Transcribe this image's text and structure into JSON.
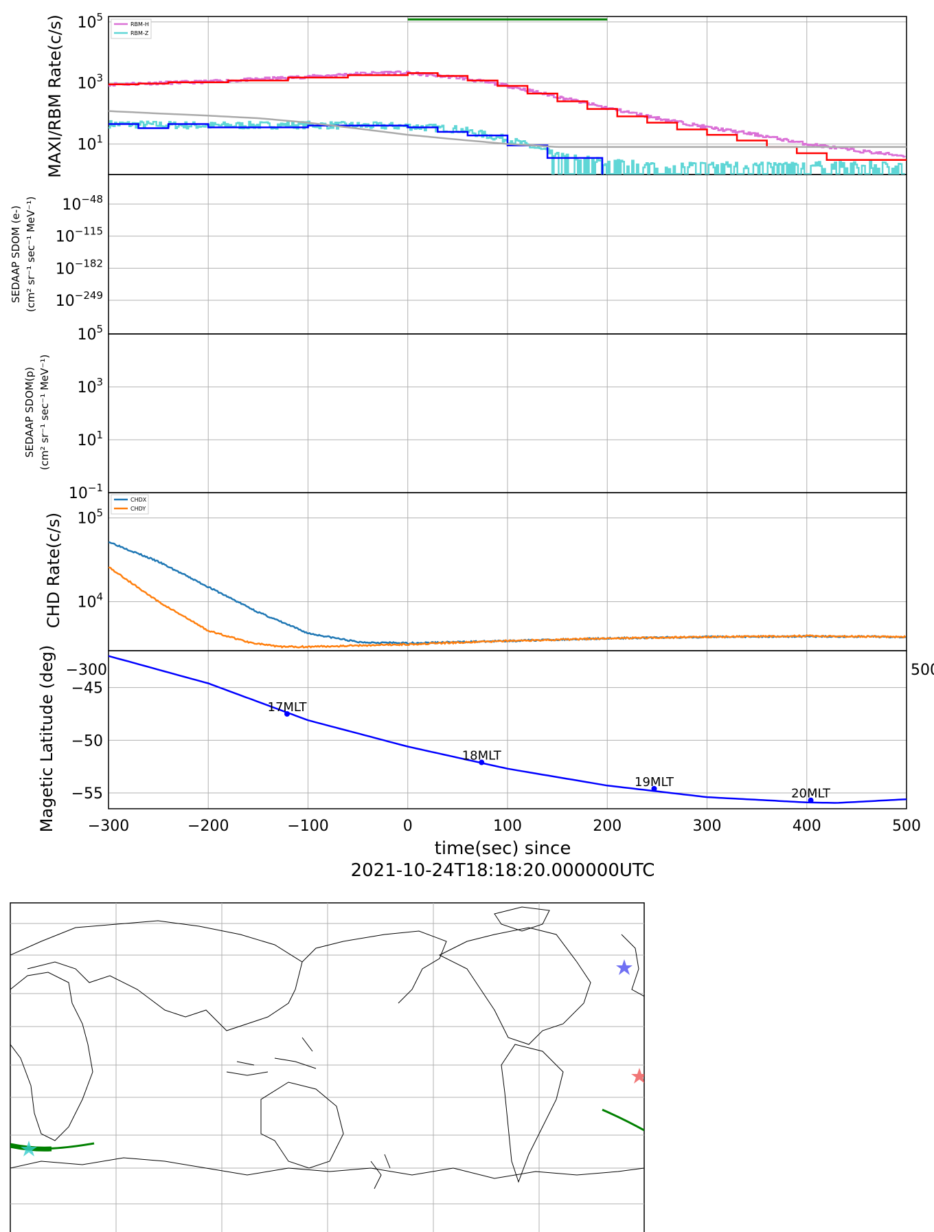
{
  "colors": {
    "grid": "#b0b0b0",
    "rbm_h": "#da70d6",
    "rbm_z": "#5fd6d6",
    "rbm_h_bin": "#ff0000",
    "rbm_z_bin": "#0000ff",
    "background_model": "#aaaaaa",
    "interval_bar": "#008000",
    "chdx": "#1f77b4",
    "chdy": "#ff7f0e",
    "maglat": "#0000ff",
    "track": "#008000",
    "star_blue": "#3333ee",
    "star_red": "#ee5555",
    "star_cyan": "#33cccc"
  },
  "chart_data": [
    {
      "type": "line",
      "panel": "rbm",
      "ylabel": "MAXI/RBM Rate(c/s)",
      "yscale": "log",
      "xlim": [
        -300,
        500
      ],
      "ylim": [
        1,
        150000
      ],
      "yticks": [
        {
          "value": 10,
          "label_base": "10",
          "label_exp": "1"
        },
        {
          "value": 1000,
          "label_base": "10",
          "label_exp": "3"
        },
        {
          "value": 100000,
          "label_base": "10",
          "label_exp": "5"
        }
      ],
      "legend": {
        "placement": "top-left",
        "entries": [
          "RBM-H",
          "RBM-Z"
        ]
      },
      "interval_bar": {
        "x": [
          0,
          200
        ],
        "y": 120000
      },
      "series": [
        {
          "name": "RBM-H",
          "x": [
            -300,
            -200,
            -100,
            -50,
            -20,
            0,
            50,
            100,
            150,
            200,
            250,
            300,
            350,
            400,
            450,
            500
          ],
          "y": [
            900,
            1100,
            1600,
            2000,
            2200,
            2100,
            1500,
            800,
            350,
            150,
            70,
            35,
            20,
            10,
            6,
            4
          ]
        },
        {
          "name": "RBM-Z",
          "x": [
            -300,
            -200,
            -100,
            0,
            50,
            100,
            130,
            150,
            200,
            250,
            300,
            400,
            500
          ],
          "y": [
            45,
            40,
            42,
            38,
            30,
            14,
            7,
            4,
            2.5,
            2,
            2,
            2,
            2
          ]
        },
        {
          "name": "RBM-H binned",
          "x": [
            -300,
            -270,
            -240,
            -180,
            -120,
            -60,
            0,
            30,
            60,
            90,
            120,
            150,
            180,
            210,
            240,
            270,
            300,
            330,
            360,
            390,
            420,
            500
          ],
          "y": [
            900,
            950,
            1050,
            1200,
            1500,
            1800,
            2100,
            1700,
            1200,
            800,
            450,
            250,
            140,
            80,
            50,
            30,
            20,
            13,
            8,
            5,
            3,
            3
          ]
        },
        {
          "name": "RBM-Z binned",
          "x": [
            -300,
            -270,
            -240,
            -200,
            -100,
            0,
            30,
            60,
            100,
            140,
            195
          ],
          "y": [
            45,
            33,
            45,
            35,
            40,
            35,
            25,
            19,
            9,
            3.5,
            1
          ]
        },
        {
          "name": "background",
          "x": [
            -300,
            -250,
            -200,
            -150,
            -100,
            -50,
            0,
            50,
            100,
            150,
            200,
            300,
            400,
            500
          ],
          "y": [
            120,
            100,
            85,
            70,
            50,
            32,
            20,
            14,
            10,
            8,
            8,
            8,
            8,
            8
          ]
        }
      ]
    },
    {
      "type": "line",
      "panel": "sdom_e",
      "ylabel_line1": "SEDAAP SDOM (e-)",
      "ylabel_line2": "(cm² sr⁻¹ sec⁻¹ MeV⁻¹)",
      "yticks": [
        {
          "value": -48,
          "label_base": "10",
          "label_exp": "−48"
        },
        {
          "value": -115,
          "label_base": "10",
          "label_exp": "−115"
        },
        {
          "value": -182,
          "label_base": "10",
          "label_exp": "−182"
        },
        {
          "value": -249,
          "label_base": "10",
          "label_exp": "−249"
        }
      ],
      "series": []
    },
    {
      "type": "line",
      "panel": "sdom_p",
      "ylabel_line1": "SEDAAP SDOM(p)",
      "ylabel_line2": "(cm² sr⁻¹ sec⁻¹ MeV⁻¹)",
      "yscale": "log",
      "ylim": [
        0.1,
        100000
      ],
      "yticks": [
        {
          "value": 0.1,
          "label_base": "10",
          "label_exp": "−1"
        },
        {
          "value": 10,
          "label_base": "10",
          "label_exp": "1"
        },
        {
          "value": 1000,
          "label_base": "10",
          "label_exp": "3"
        },
        {
          "value": 100000,
          "label_base": "10",
          "label_exp": "5"
        }
      ],
      "series": []
    },
    {
      "type": "line",
      "panel": "chd",
      "ylabel": "CHD Rate(c/s)",
      "yscale": "log",
      "ylim": [
        2600,
        200000
      ],
      "yticks": [
        {
          "value": 10000,
          "label_base": "10",
          "label_exp": "4"
        },
        {
          "value": 100000,
          "label_base": "10",
          "label_exp": "5"
        }
      ],
      "legend": {
        "placement": "top-left",
        "entries": [
          "CHDX",
          "CHDY"
        ]
      },
      "series": [
        {
          "name": "CHDX",
          "x": [
            -300,
            -250,
            -200,
            -150,
            -100,
            -50,
            0,
            100,
            200,
            300,
            400,
            500
          ],
          "y": [
            52000,
            30000,
            15000,
            7500,
            4200,
            3300,
            3200,
            3400,
            3650,
            3800,
            3850,
            3800
          ]
        },
        {
          "name": "CHDY",
          "x": [
            -300,
            -250,
            -200,
            -160,
            -130,
            -100,
            -50,
            0,
            100,
            200,
            300,
            400,
            500
          ],
          "y": [
            26000,
            10000,
            4500,
            3300,
            2900,
            2900,
            3000,
            3100,
            3400,
            3650,
            3800,
            3900,
            3800
          ]
        }
      ]
    },
    {
      "type": "line",
      "panel": "maglat",
      "ylabel": "Magetic Latitude  (deg)",
      "xlabel_line1": "time(sec) since",
      "xlabel_line2": "2021-10-24T18:18:20.000000UTC",
      "xlim": [
        -300,
        500
      ],
      "ylim": [
        -56.5,
        -41.5
      ],
      "xticks": [
        -300,
        -200,
        -100,
        0,
        100,
        200,
        300,
        400,
        500
      ],
      "xtick_labels": [
        "−300",
        "−200",
        "−100",
        "0",
        "100",
        "200",
        "300",
        "400",
        "500"
      ],
      "yticks": [
        -55,
        -50,
        -45
      ],
      "ytick_labels": [
        "−55",
        "−50",
        "−45"
      ],
      "series": [
        {
          "name": "Magnetic latitude",
          "x": [
            -300,
            -200,
            -100,
            0,
            100,
            200,
            300,
            400,
            430,
            500
          ],
          "y": [
            -42.0,
            -44.6,
            -48.1,
            -50.6,
            -52.7,
            -54.3,
            -55.4,
            -55.9,
            -55.95,
            -55.6
          ]
        }
      ],
      "annotations": [
        {
          "x": -121,
          "y": -47.5,
          "text": "17MLT"
        },
        {
          "x": 74,
          "y": -52.1,
          "text": "18MLT"
        },
        {
          "x": 247,
          "y": -54.6,
          "text": "19MLT"
        },
        {
          "x": 404,
          "y": -55.7,
          "text": "20MLT"
        }
      ]
    }
  ]
}
